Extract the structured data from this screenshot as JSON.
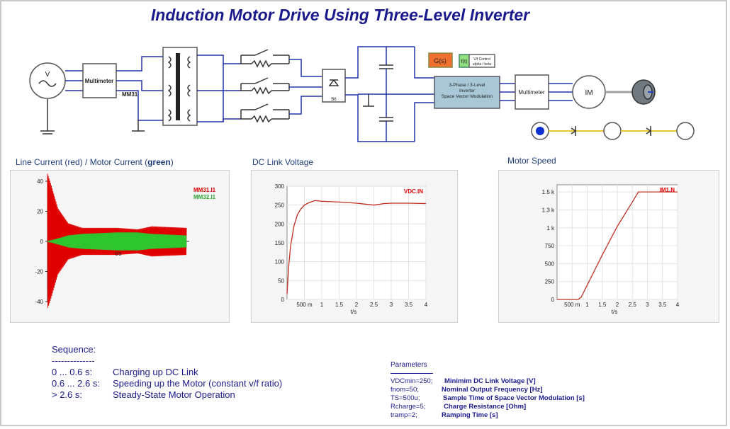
{
  "title": "Induction Motor Drive Using Three-Level Inverter",
  "schematic": {
    "source_label": "V",
    "multimeter1": "Multimeter",
    "multimeter1_id": "MM31",
    "rectifier_label": "B6",
    "gs_label": "G(s)",
    "ft_label": "f(t)",
    "vf_label1": "V/f Control",
    "vf_label2": "alpha / beta",
    "inverter_line1": "3-Phase / 3-Level",
    "inverter_line2": "Inverter",
    "inverter_line3": "Space Vector Modulation",
    "multimeter2": "Multimeter",
    "motor_label": "IM"
  },
  "charts": {
    "current": {
      "heading_prefix": "Line Current (red) / Motor Current (",
      "heading_bold": "green",
      "heading_suffix": ")",
      "legend_red": "MM31.I1",
      "legend_green": "MM32.I1",
      "xlabel": "t/s",
      "yticks": [
        "40",
        "20",
        "0",
        "-20",
        "-40"
      ]
    },
    "vdc": {
      "heading": "DC Link Voltage",
      "legend": "VDC.IN",
      "xlabel": "t/s",
      "yticks": [
        "300",
        "250",
        "200",
        "150",
        "100",
        "50",
        "0"
      ],
      "xticks": [
        "500 m",
        "1",
        "1.5",
        "2",
        "2.5",
        "3",
        "3.5",
        "4"
      ]
    },
    "speed": {
      "heading": "Motor Speed",
      "legend": "IM1.N",
      "xlabel": "t/s",
      "yticks": [
        "1.5 k",
        "1.3 k",
        "1 k",
        "750",
        "500",
        "250",
        "0"
      ],
      "xticks": [
        "500 m",
        "1",
        "1.5",
        "2",
        "2.5",
        "3",
        "3.5",
        "4"
      ]
    }
  },
  "chart_data": [
    {
      "type": "line",
      "title": "Line Current (red) / Motor Current (green)",
      "xlabel": "t/s",
      "ylabel": "",
      "ylim": [
        -40,
        40
      ],
      "xlim": [
        0,
        4
      ],
      "series": [
        {
          "name": "MM31.I1",
          "color": "#e00000",
          "x": [
            0,
            0.1,
            0.3,
            0.6,
            1.0,
            2.0,
            2.6,
            3.0,
            4.0
          ],
          "envelope": [
            45,
            38,
            22,
            12,
            9,
            9,
            8,
            10,
            9
          ]
        },
        {
          "name": "MM32.I1",
          "color": "#2fc52f",
          "x": [
            0,
            0.6,
            1.0,
            2.0,
            2.6,
            3.0,
            4.0
          ],
          "envelope": [
            0,
            4,
            5,
            6,
            6,
            5,
            4
          ]
        }
      ]
    },
    {
      "type": "line",
      "title": "DC Link Voltage",
      "xlabel": "t/s",
      "ylabel": "",
      "ylim": [
        0,
        300
      ],
      "xlim": [
        0,
        4
      ],
      "series": [
        {
          "name": "VDC.IN",
          "color": "#c03020",
          "x": [
            0,
            0.05,
            0.1,
            0.2,
            0.3,
            0.4,
            0.5,
            0.6,
            0.8,
            1.0,
            1.5,
            2.0,
            2.5,
            2.8,
            3.0,
            3.5,
            4.0
          ],
          "y": [
            15,
            90,
            140,
            195,
            225,
            240,
            250,
            255,
            262,
            260,
            258,
            255,
            250,
            254,
            255,
            255,
            254
          ]
        }
      ]
    },
    {
      "type": "line",
      "title": "Motor Speed",
      "xlabel": "t/s",
      "ylabel": "",
      "ylim": [
        0,
        1600
      ],
      "xlim": [
        0,
        4
      ],
      "series": [
        {
          "name": "IM1.N",
          "color": "#c03020",
          "x": [
            0,
            0.6,
            0.7,
            0.8,
            1.0,
            1.5,
            2.0,
            2.5,
            2.7,
            3.0,
            4.0
          ],
          "y": [
            0,
            0,
            0,
            30,
            200,
            620,
            1020,
            1360,
            1500,
            1500,
            1500
          ]
        }
      ]
    }
  ],
  "sequence": {
    "heading": "Sequence:",
    "divider": "--------------",
    "rows": [
      {
        "time": "0 ... 0.6 s:",
        "desc": "Charging up DC Link"
      },
      {
        "time": "0.6 ... 2.6 s:",
        "desc": "Speeding up the Motor (constant v/f ratio)"
      },
      {
        "time": "> 2.6 s:",
        "desc": "Steady-State Motor Operation"
      }
    ]
  },
  "parameters": {
    "heading": "Parameters",
    "rows": [
      {
        "name": "VDCmin=250;",
        "desc": "Minimim DC Link Voltage [V]"
      },
      {
        "name": "fnom=50;",
        "desc": "Nominal Output Frequency [Hz]"
      },
      {
        "name": "TS=500u;",
        "desc": "Sample Time of Space Vector Modulation [s]"
      },
      {
        "name": "Rcharge=5;",
        "desc": "Charge Resistance [Ohm]"
      },
      {
        "name": "tramp=2;",
        "desc": "Ramping Time [s]"
      }
    ]
  }
}
